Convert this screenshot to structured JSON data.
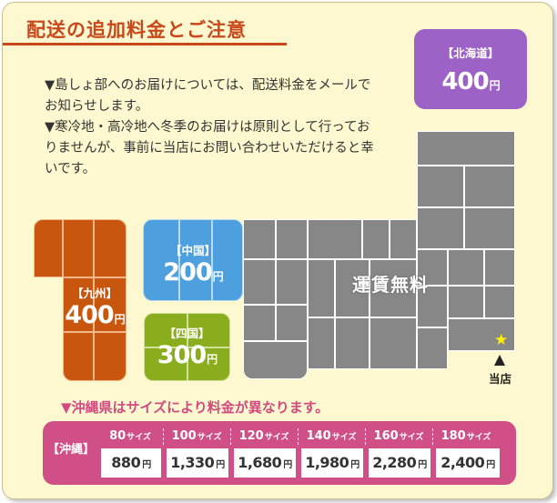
{
  "title": "配送の追加料金とご注意",
  "notes": [
    "▼島しょ部へのお届けについては、配送料金をメールでお知らせします。",
    "▼寒冷地・高冷地へ冬季のお届けは原則として行っておりませんが、事前に当店にお問い合わせいただけると幸いです。"
  ],
  "regions": {
    "hokkaido": {
      "label": "【北海道】",
      "price": "400",
      "unit": "円",
      "color": "#9d62c6"
    },
    "kyushu": {
      "label": "【九州】",
      "price": "400",
      "unit": "円",
      "color": "#c9560f"
    },
    "chugoku": {
      "label": "【中国】",
      "price": "200",
      "unit": "円",
      "color": "#4d9fde"
    },
    "shikoku": {
      "label": "【四国】",
      "price": "300",
      "unit": "円",
      "color": "#8aad1d"
    },
    "honshu": {
      "label": "運賃無料",
      "color": "#878787"
    }
  },
  "store_marker": {
    "label": "当店",
    "icon": "star-icon"
  },
  "okinawa": {
    "note": "▼沖縄県はサイズにより料金が異なります。",
    "label": "【沖縄】",
    "size_unit": "サイズ",
    "price_unit": "円",
    "rows": [
      {
        "size": "80",
        "price": "880"
      },
      {
        "size": "100",
        "price": "1,330"
      },
      {
        "size": "120",
        "price": "1,680"
      },
      {
        "size": "140",
        "price": "1,980"
      },
      {
        "size": "160",
        "price": "2,280"
      },
      {
        "size": "180",
        "price": "2,400"
      }
    ]
  }
}
